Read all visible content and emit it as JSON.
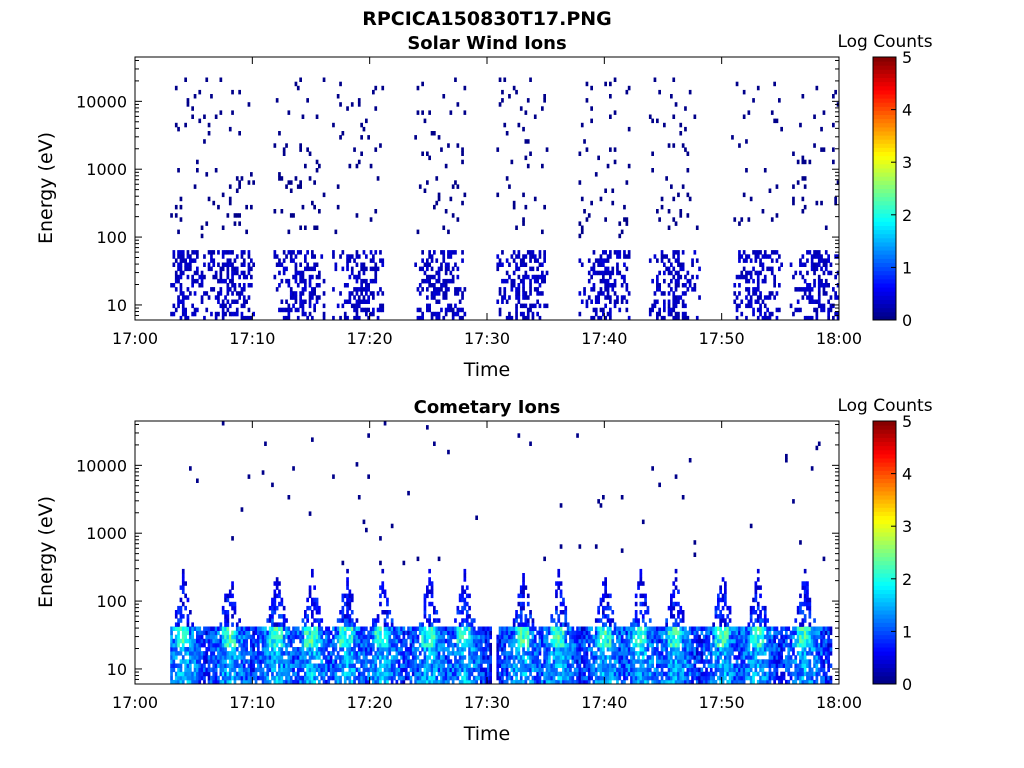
{
  "title": "RPCICA150830T17.PNG",
  "panels": [
    {
      "subtitle": "Solar Wind Ions",
      "ylabel": "Energy (eV)",
      "xlabel": "Time",
      "colorbar_label": "Log Counts",
      "colorbar_ticks": [
        "0",
        "1",
        "2",
        "3",
        "4",
        "5"
      ],
      "y_ticks": [
        "10",
        "100",
        "1000",
        "10000"
      ],
      "x_ticks": [
        "17:00",
        "17:10",
        "17:20",
        "17:30",
        "17:40",
        "17:50",
        "18:00"
      ]
    },
    {
      "subtitle": "Cometary Ions",
      "ylabel": "Energy (eV)",
      "xlabel": "Time",
      "colorbar_label": "Log Counts",
      "colorbar_ticks": [
        "0",
        "1",
        "2",
        "3",
        "4",
        "5"
      ],
      "y_ticks": [
        "10",
        "100",
        "1000",
        "10000"
      ],
      "x_ticks": [
        "17:00",
        "17:10",
        "17:20",
        "17:30",
        "17:40",
        "17:50",
        "18:00"
      ]
    }
  ],
  "chart_data": [
    {
      "type": "heatmap",
      "title": "Solar Wind Ions",
      "xlabel": "Time",
      "ylabel": "Energy (eV)",
      "x_range": [
        "17:00",
        "18:00"
      ],
      "y_range": [
        6,
        45000
      ],
      "y_scale": "log",
      "color_label": "Log Counts",
      "color_range": [
        0,
        5
      ],
      "colormap": "jet",
      "burst_minutes": [
        4,
        8,
        14,
        19,
        26,
        33,
        40,
        46,
        53,
        58
      ],
      "low_energy_band_eV": [
        6,
        60
      ],
      "low_energy_level": 0.2,
      "sparse_points_eV_range": [
        100,
        22000
      ]
    },
    {
      "type": "heatmap",
      "title": "Cometary Ions",
      "xlabel": "Time",
      "ylabel": "Energy (eV)",
      "x_range": [
        "17:00",
        "18:00"
      ],
      "y_range": [
        6,
        45000
      ],
      "y_scale": "log",
      "color_label": "Log Counts",
      "color_range": [
        0,
        5
      ],
      "colormap": "jet",
      "burst_minutes": [
        4,
        8,
        12,
        15,
        18,
        21,
        25,
        28,
        33,
        36,
        40,
        43,
        46,
        50,
        53,
        57
      ],
      "band_eV": [
        6,
        45
      ],
      "band_level": 1.5,
      "peak_level": 2.1,
      "plume_top_eV": 300
    }
  ]
}
